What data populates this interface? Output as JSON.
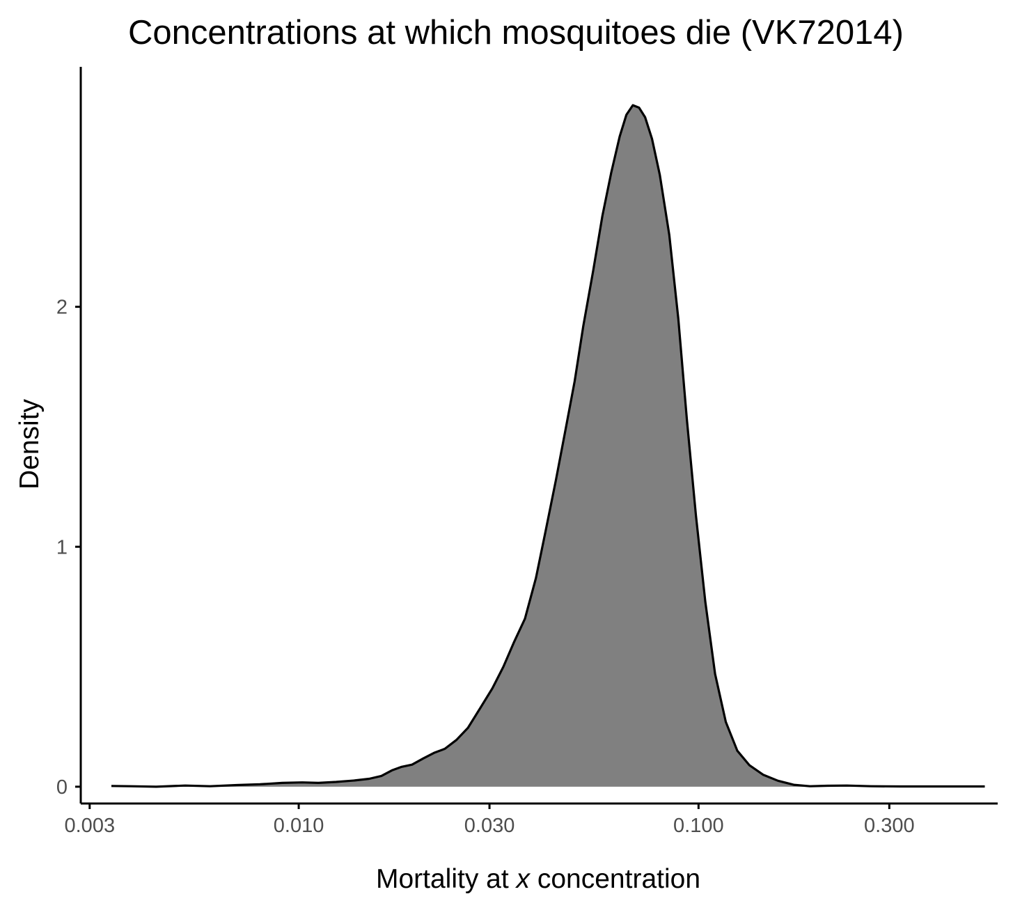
{
  "chart_data": {
    "type": "area",
    "title": "Concentrations at which mosquitoes die (VK72014)",
    "xlabel_prefix": "Mortality at ",
    "xlabel_var": "x",
    "xlabel_suffix": " concentration",
    "ylabel": "Density",
    "x_scale": "log10",
    "xlim": [
      0.00285,
      0.56
    ],
    "ylim": [
      -0.07,
      3.0
    ],
    "x_ticks": [
      0.003,
      0.01,
      0.03,
      0.1,
      0.3
    ],
    "x_tick_labels": [
      "0.003",
      "0.010",
      "0.030",
      "0.100",
      "0.300"
    ],
    "y_ticks": [
      0,
      1,
      2
    ],
    "y_tick_labels": [
      "0",
      "1",
      "2"
    ],
    "fill_color": "#808080",
    "line_color": "#000000",
    "grid": false,
    "legend": "none",
    "x": [
      0.0034,
      0.0038,
      0.0044,
      0.0052,
      0.006,
      0.007,
      0.008,
      0.0091,
      0.0102,
      0.0112,
      0.0124,
      0.0138,
      0.015,
      0.0161,
      0.0171,
      0.0181,
      0.0192,
      0.0205,
      0.0218,
      0.0232,
      0.0248,
      0.0265,
      0.0285,
      0.0305,
      0.0325,
      0.0345,
      0.0368,
      0.0392,
      0.0415,
      0.044,
      0.0465,
      0.049,
      0.0515,
      0.0545,
      0.0575,
      0.0605,
      0.0635,
      0.066,
      0.0685,
      0.071,
      0.0735,
      0.0765,
      0.08,
      0.0845,
      0.089,
      0.0935,
      0.0985,
      0.104,
      0.11,
      0.117,
      0.125,
      0.134,
      0.145,
      0.158,
      0.173,
      0.19,
      0.21,
      0.235,
      0.27,
      0.32,
      0.38,
      0.45,
      0.52
    ],
    "y": [
      0.003,
      0.002,
      0.0,
      0.005,
      0.002,
      0.007,
      0.01,
      0.016,
      0.018,
      0.016,
      0.02,
      0.026,
      0.033,
      0.045,
      0.068,
      0.083,
      0.092,
      0.118,
      0.141,
      0.158,
      0.195,
      0.245,
      0.33,
      0.41,
      0.5,
      0.6,
      0.7,
      0.87,
      1.07,
      1.28,
      1.49,
      1.69,
      1.92,
      2.15,
      2.38,
      2.56,
      2.71,
      2.8,
      2.84,
      2.83,
      2.79,
      2.7,
      2.55,
      2.3,
      1.95,
      1.53,
      1.13,
      0.77,
      0.47,
      0.27,
      0.15,
      0.09,
      0.05,
      0.025,
      0.008,
      0.002,
      0.004,
      0.005,
      0.002,
      0.001,
      0.001,
      0.001,
      0.001
    ]
  }
}
